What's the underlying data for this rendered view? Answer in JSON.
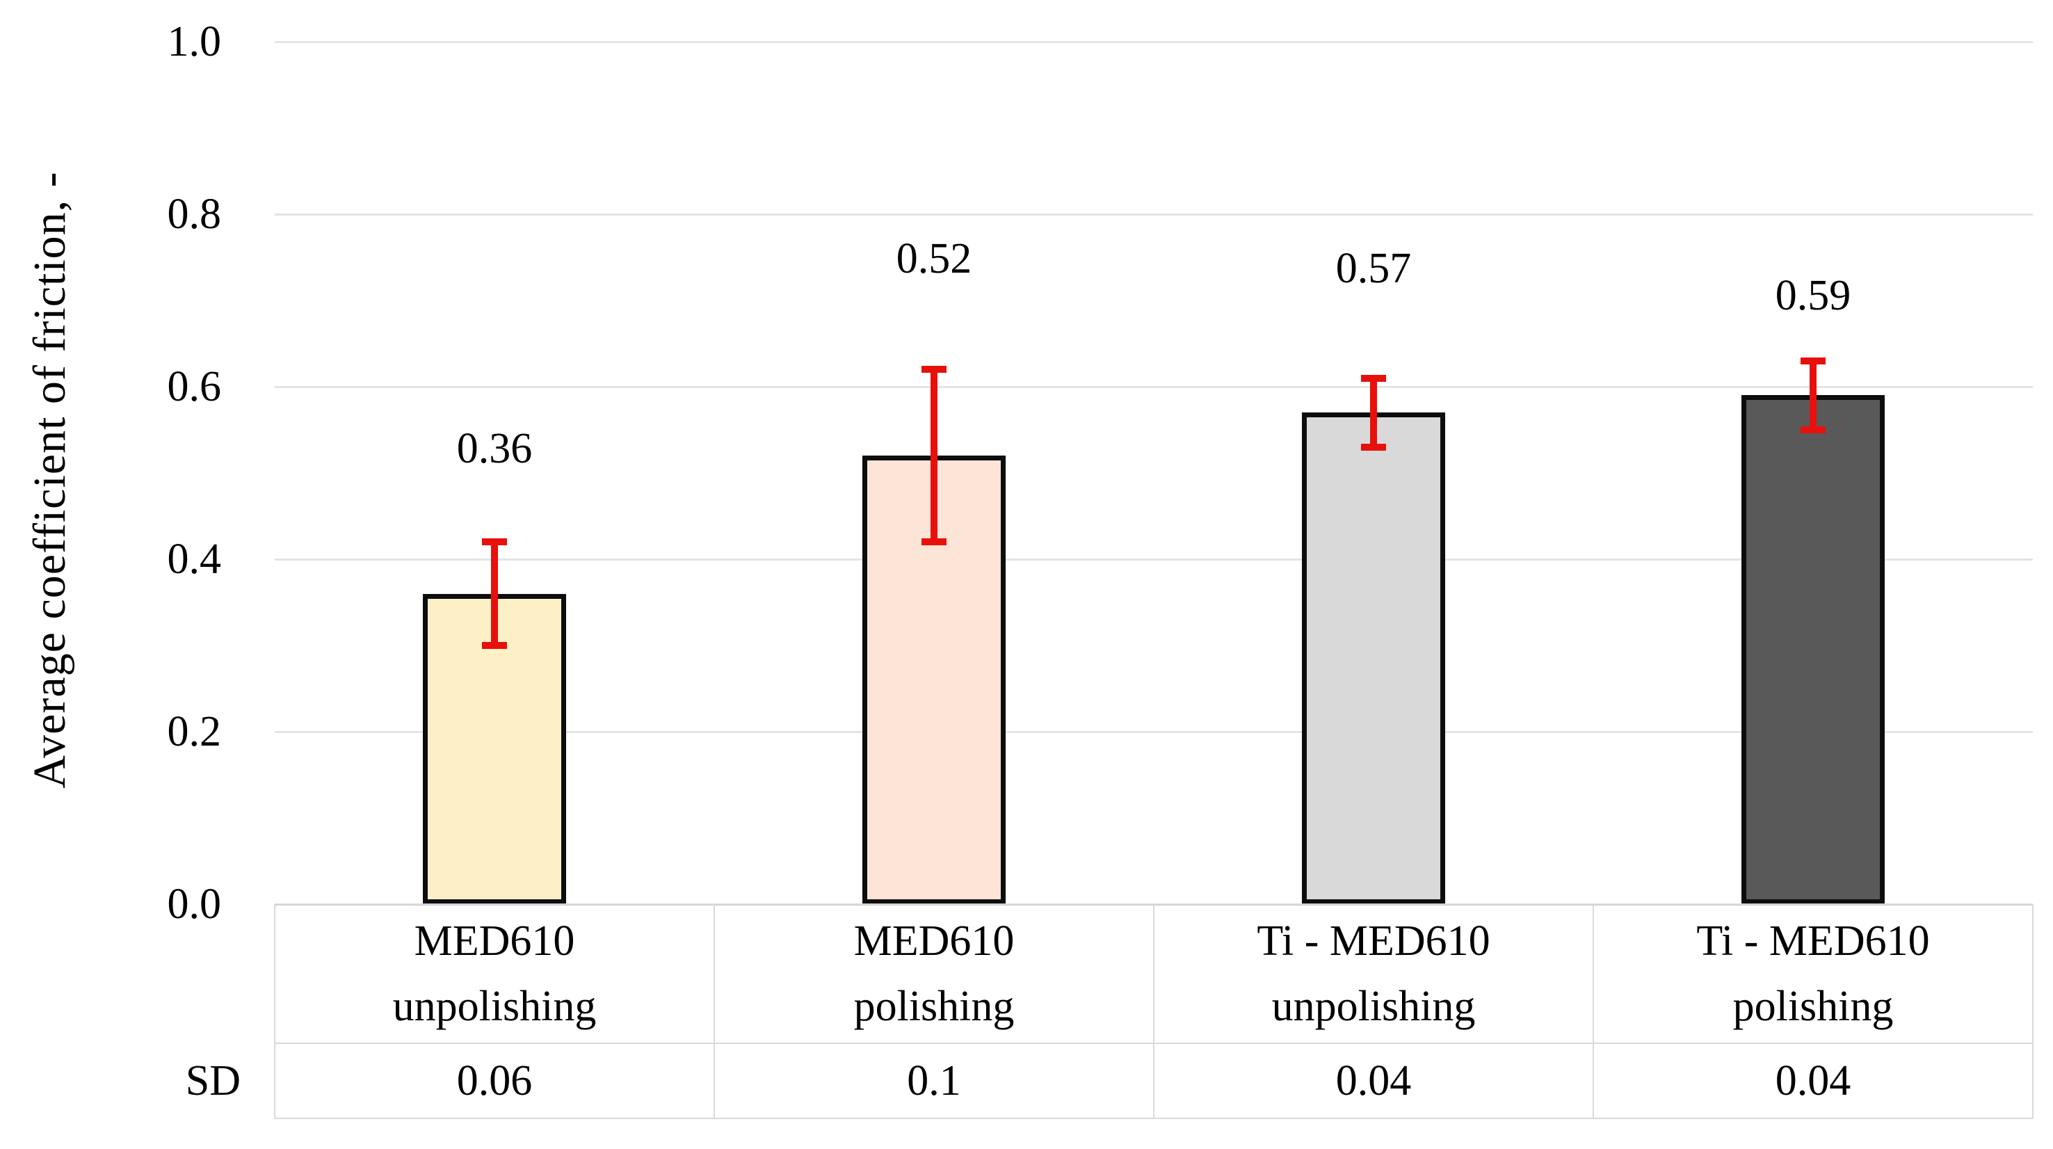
{
  "chart_data": {
    "type": "bar",
    "title": "",
    "ylabel": "Average coefficient of friction, -",
    "xlabel": "",
    "categories": [
      "MED610\nunpolishing",
      "MED610\npolishing",
      "Ti - MED610\nunpolishing",
      "Ti - MED610\npolishing"
    ],
    "values": [
      0.36,
      0.52,
      0.57,
      0.59
    ],
    "value_labels": [
      "0.36",
      "0.52",
      "0.57",
      "0.59"
    ],
    "errors": [
      0.06,
      0.1,
      0.04,
      0.04
    ],
    "sd_label": "SD",
    "sd_values": [
      "0.06",
      "0.1",
      "0.04",
      "0.04"
    ],
    "ylim": [
      0.0,
      1.0
    ],
    "ytick_labels": [
      "1.0",
      "0.8",
      "0.6",
      "0.4",
      "0.2",
      "0.0"
    ],
    "grid": true,
    "legend": false,
    "bar_colors": [
      "#fdf0c7",
      "#fce4d6",
      "#d9d9d9",
      "#595959"
    ],
    "bar_border_color": "#0d0d0d",
    "error_color": "#e8100c",
    "gridline_color": "#e4e4e4",
    "axis_line_color": "#cccccc",
    "table_border_color": "#d9d9d9",
    "text_color": "#000000",
    "background": "#ffffff"
  }
}
